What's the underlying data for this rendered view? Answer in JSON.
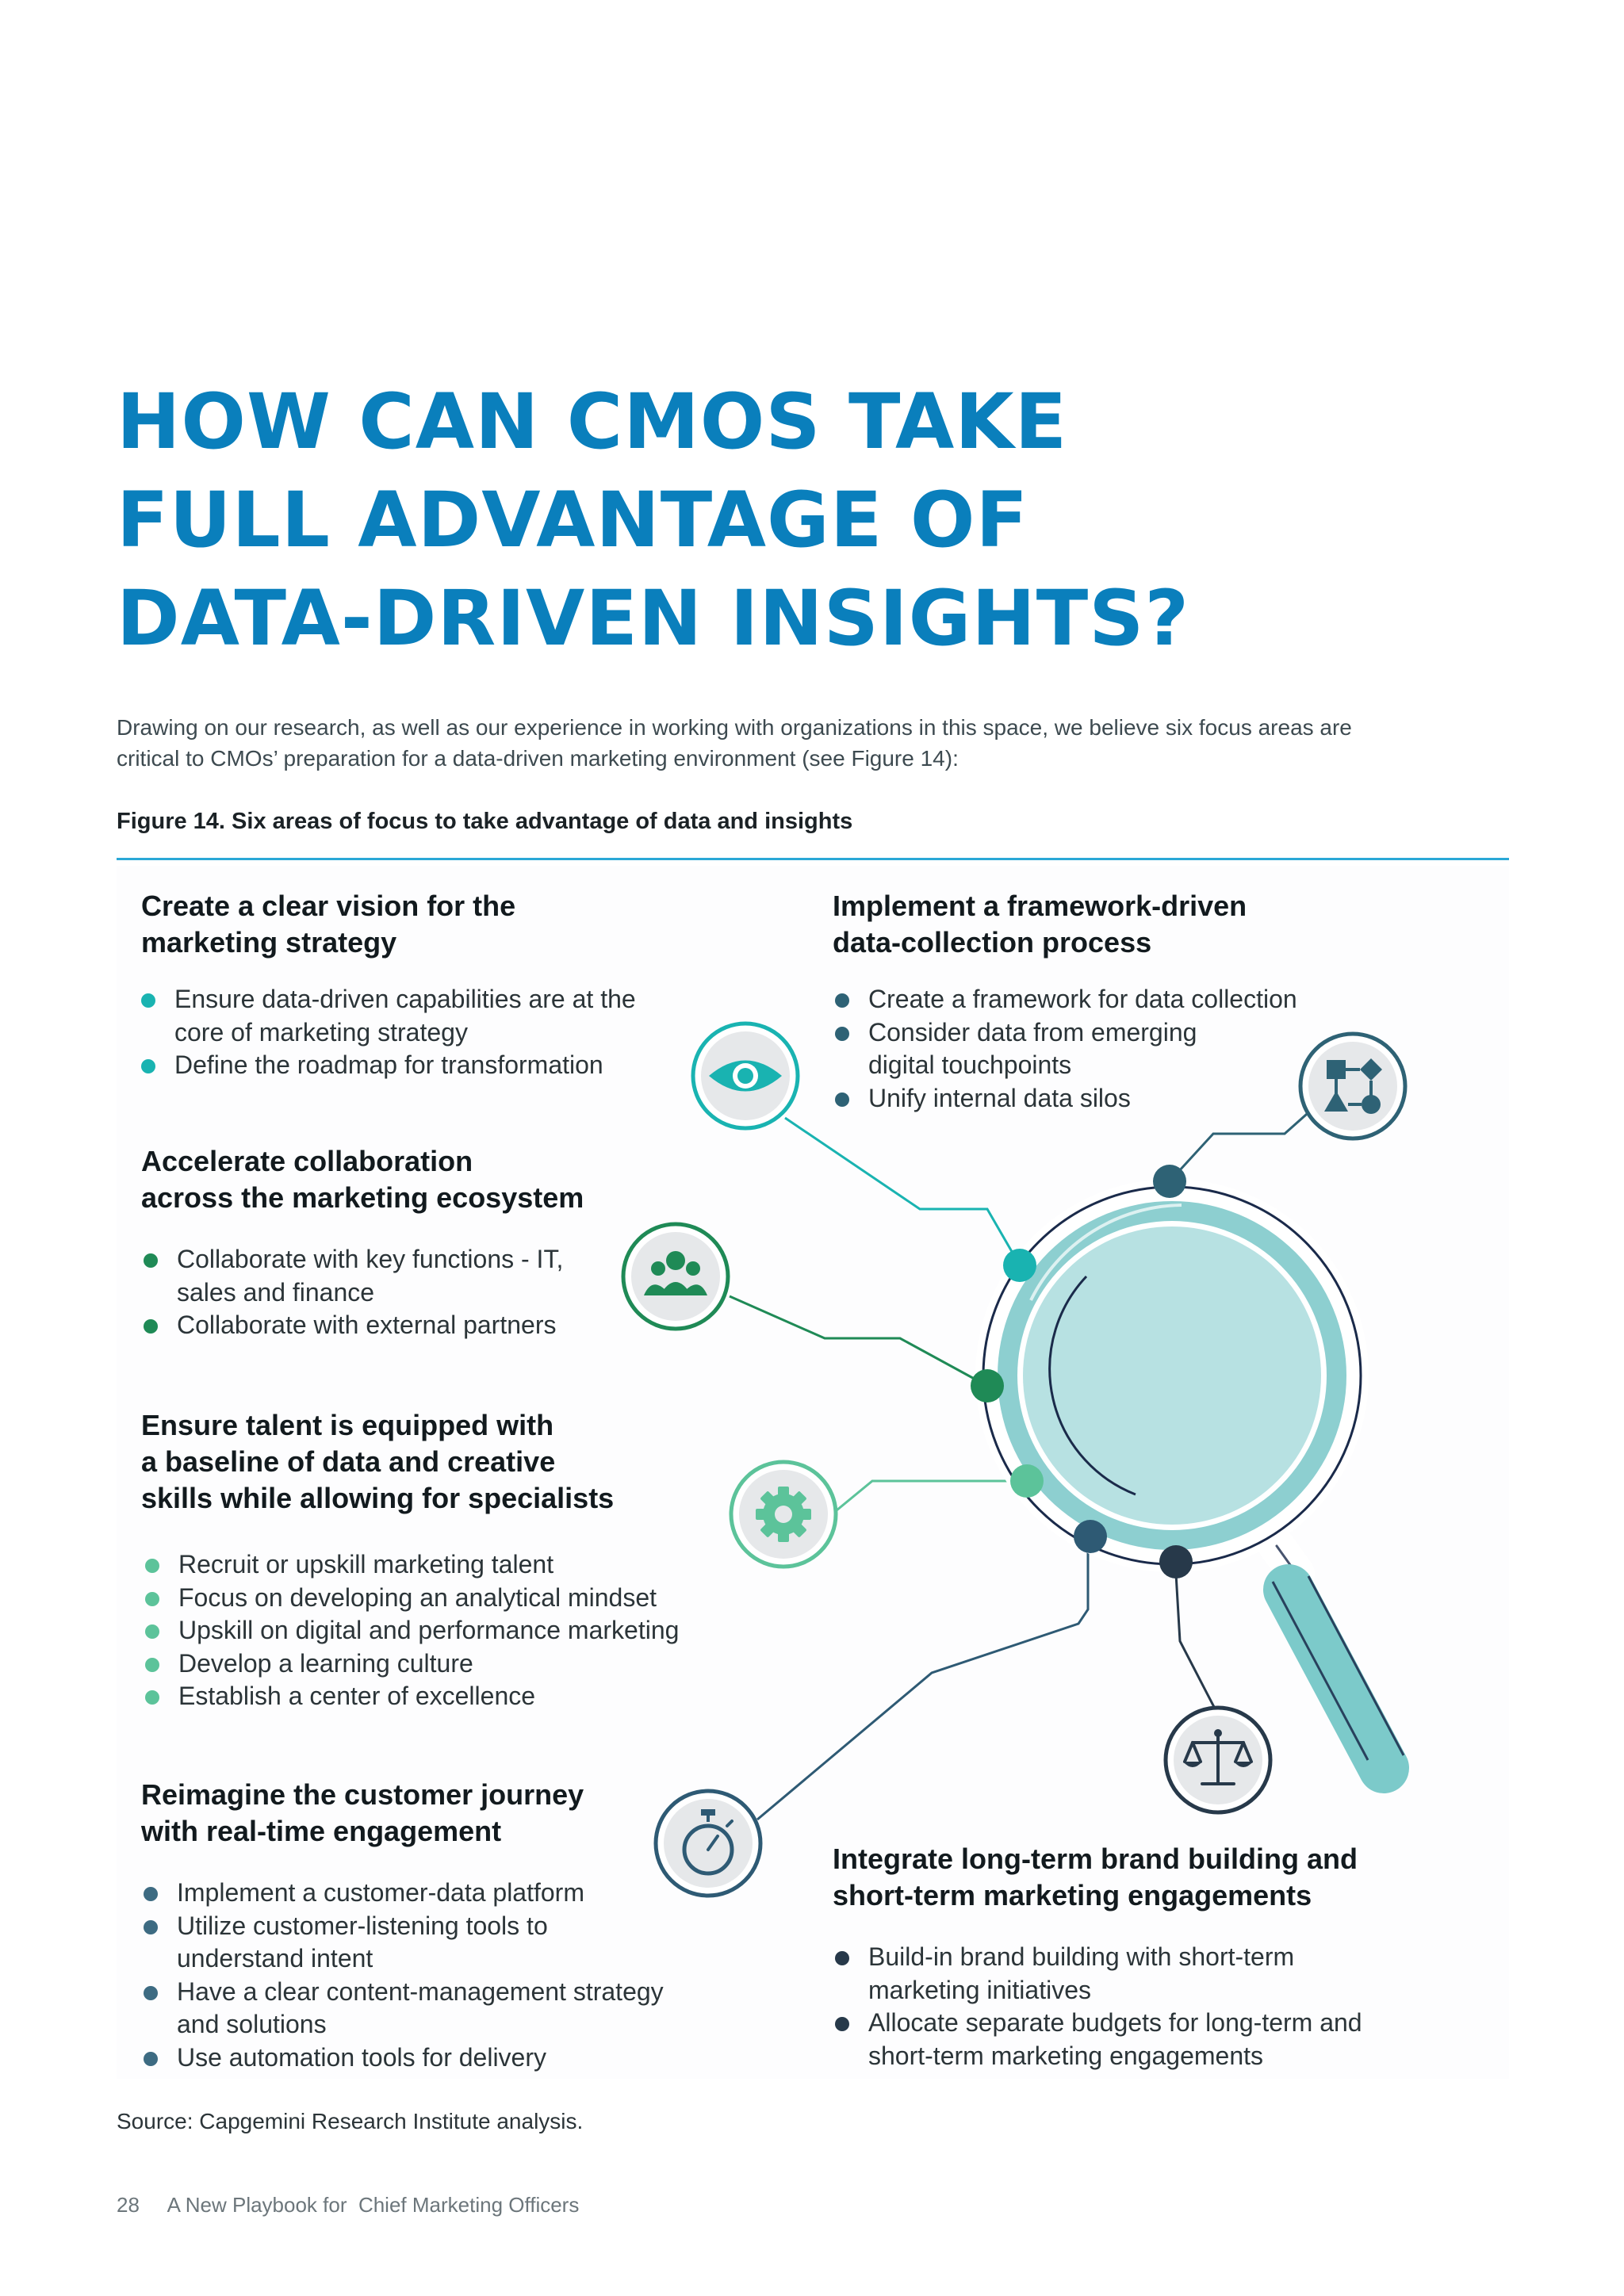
{
  "title_lines": [
    "HOW CAN CMOS TAKE",
    "FULL ADVANTAGE OF",
    "DATA-DRIVEN INSIGHTS?"
  ],
  "intro_lines": [
    "Drawing on our research, as well as our experience in working with organizations in this space, we believe six focus areas are",
    "critical to CMOs’ preparation for a data-driven marketing environment (see Figure 14):"
  ],
  "figure_title": "Figure 14. Six areas of focus to take advantage of data and insights",
  "sections": {
    "vision": {
      "title_lines": [
        "Create a clear vision for the",
        "marketing strategy"
      ],
      "items": [
        [
          "Ensure data-driven capabilities are at the",
          "core of marketing strategy"
        ],
        [
          "Define the roadmap for transformation"
        ]
      ],
      "color": "#19b3b1",
      "icon": "eye-icon"
    },
    "framework": {
      "title_lines": [
        "Implement a framework-driven",
        "data-collection process"
      ],
      "items": [
        [
          "Create a framework for data collection"
        ],
        [
          "Consider data from emerging",
          "digital touchpoints"
        ],
        [
          "Unify internal data silos"
        ]
      ],
      "color": "#2e6275",
      "icon": "flowchart-icon"
    },
    "collaboration": {
      "title_lines": [
        "Accelerate collaboration",
        "across the marketing ecosystem"
      ],
      "items": [
        [
          "Collaborate with key functions - IT,",
          "sales and finance"
        ],
        [
          "Collaborate with external partners"
        ]
      ],
      "color": "#1f8a56",
      "icon": "people-icon"
    },
    "talent": {
      "title_lines": [
        "Ensure talent is equipped with",
        "a baseline of data and creative",
        "skills while allowing for specialists"
      ],
      "items": [
        [
          "Recruit or upskill marketing talent"
        ],
        [
          "Focus on developing an analytical mindset"
        ],
        [
          "Upskill on digital and performance marketing"
        ],
        [
          "Develop a learning culture"
        ],
        [
          "Establish a center of excellence"
        ]
      ],
      "color": "#5cc39a",
      "icon": "gear-icon"
    },
    "customer": {
      "title_lines": [
        "Reimagine the customer journey",
        "with real-time engagement"
      ],
      "items": [
        [
          "Implement a customer-data platform"
        ],
        [
          "Utilize customer-listening tools to",
          "understand intent"
        ],
        [
          "Have a clear content-management strategy",
          "and solutions"
        ],
        [
          "Use automation tools for delivery"
        ]
      ],
      "color": "#3d6b82",
      "icon": "stopwatch-icon"
    },
    "brand": {
      "title_lines": [
        "Integrate long-term brand building and",
        "short-term marketing engagements"
      ],
      "items": [
        [
          "Build-in brand building with short-term",
          "marketing initiatives"
        ],
        [
          "Allocate separate budgets for long-term and",
          "short-term marketing engagements"
        ]
      ],
      "color": "#27394a",
      "icon": "scale-icon"
    }
  },
  "magnifier_colors": {
    "lens": "#b7e1e2",
    "rim": "#8dcfd0",
    "handle": "#7ccaca",
    "outline": "#1a2a4a"
  },
  "source": "Source: Capgemini Research Institute analysis.",
  "footer": {
    "page_number": "28",
    "publication": "A New Playbook for  Chief Marketing Officers"
  }
}
